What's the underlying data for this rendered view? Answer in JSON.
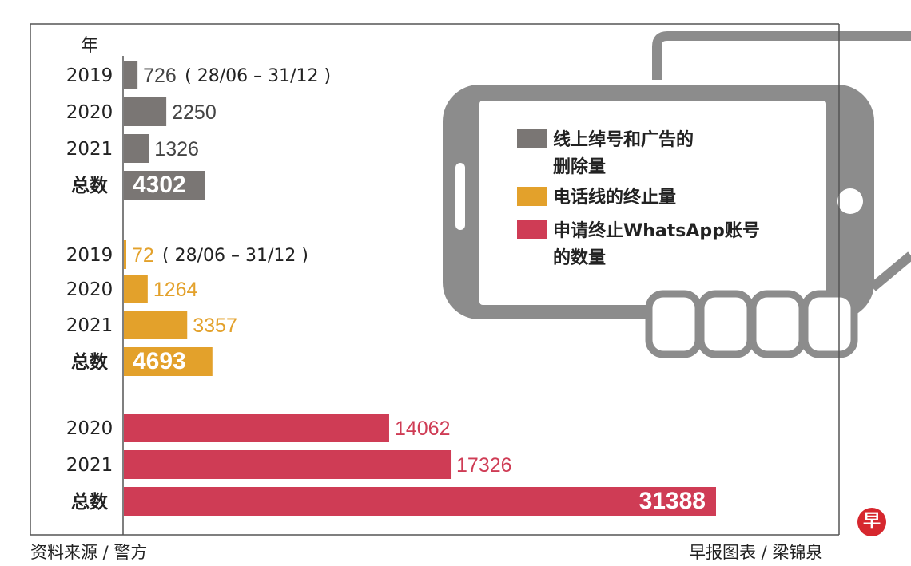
{
  "chart_data": {
    "type": "bar",
    "orientation": "horizontal",
    "year_header": "年",
    "legend_position": "top-right",
    "groups": [
      {
        "legend": "线上绰号和广告的删除量",
        "legend_lines": [
          "线上绰号和广告的",
          "删除量"
        ],
        "color": "#7a7674",
        "rows": [
          {
            "label": "2019",
            "value": 726,
            "value_label": "726",
            "note": "( 28/06 – 31/12 )"
          },
          {
            "label": "2020",
            "value": 2250,
            "value_label": "2250"
          },
          {
            "label": "2021",
            "value": 1326,
            "value_label": "1326"
          },
          {
            "label": "总数",
            "value": 4302,
            "value_label": "4302",
            "total": true
          }
        ]
      },
      {
        "legend": "电话线的终止量",
        "legend_lines": [
          "电话线的终止量"
        ],
        "color": "#e3a12b",
        "rows": [
          {
            "label": "2019",
            "value": 72,
            "value_label": "72",
            "note": "( 28/06 – 31/12 )"
          },
          {
            "label": "2020",
            "value": 1264,
            "value_label": "1264"
          },
          {
            "label": "2021",
            "value": 3357,
            "value_label": "3357"
          },
          {
            "label": "总数",
            "value": 4693,
            "value_label": "4693",
            "total": true
          }
        ]
      },
      {
        "legend": "申请终止WhatsApp账号的数量",
        "legend_lines": [
          "申请终止WhatsApp账号",
          "的数量"
        ],
        "color": "#cf3c55",
        "rows": [
          {
            "label": "2020",
            "value": 14062,
            "value_label": "14062"
          },
          {
            "label": "2021",
            "value": 17326,
            "value_label": "17326"
          },
          {
            "label": "总数",
            "value": 31388,
            "value_label": "31388",
            "total": true
          }
        ]
      }
    ]
  },
  "footer": {
    "source": "资料来源 / 警方",
    "credit": "早报图表 / 梁锦泉",
    "logo_glyph": "早"
  },
  "colors": {
    "phone_frame": "#8c8c8c",
    "axis": "#555555",
    "total_text": "#ffffff"
  }
}
